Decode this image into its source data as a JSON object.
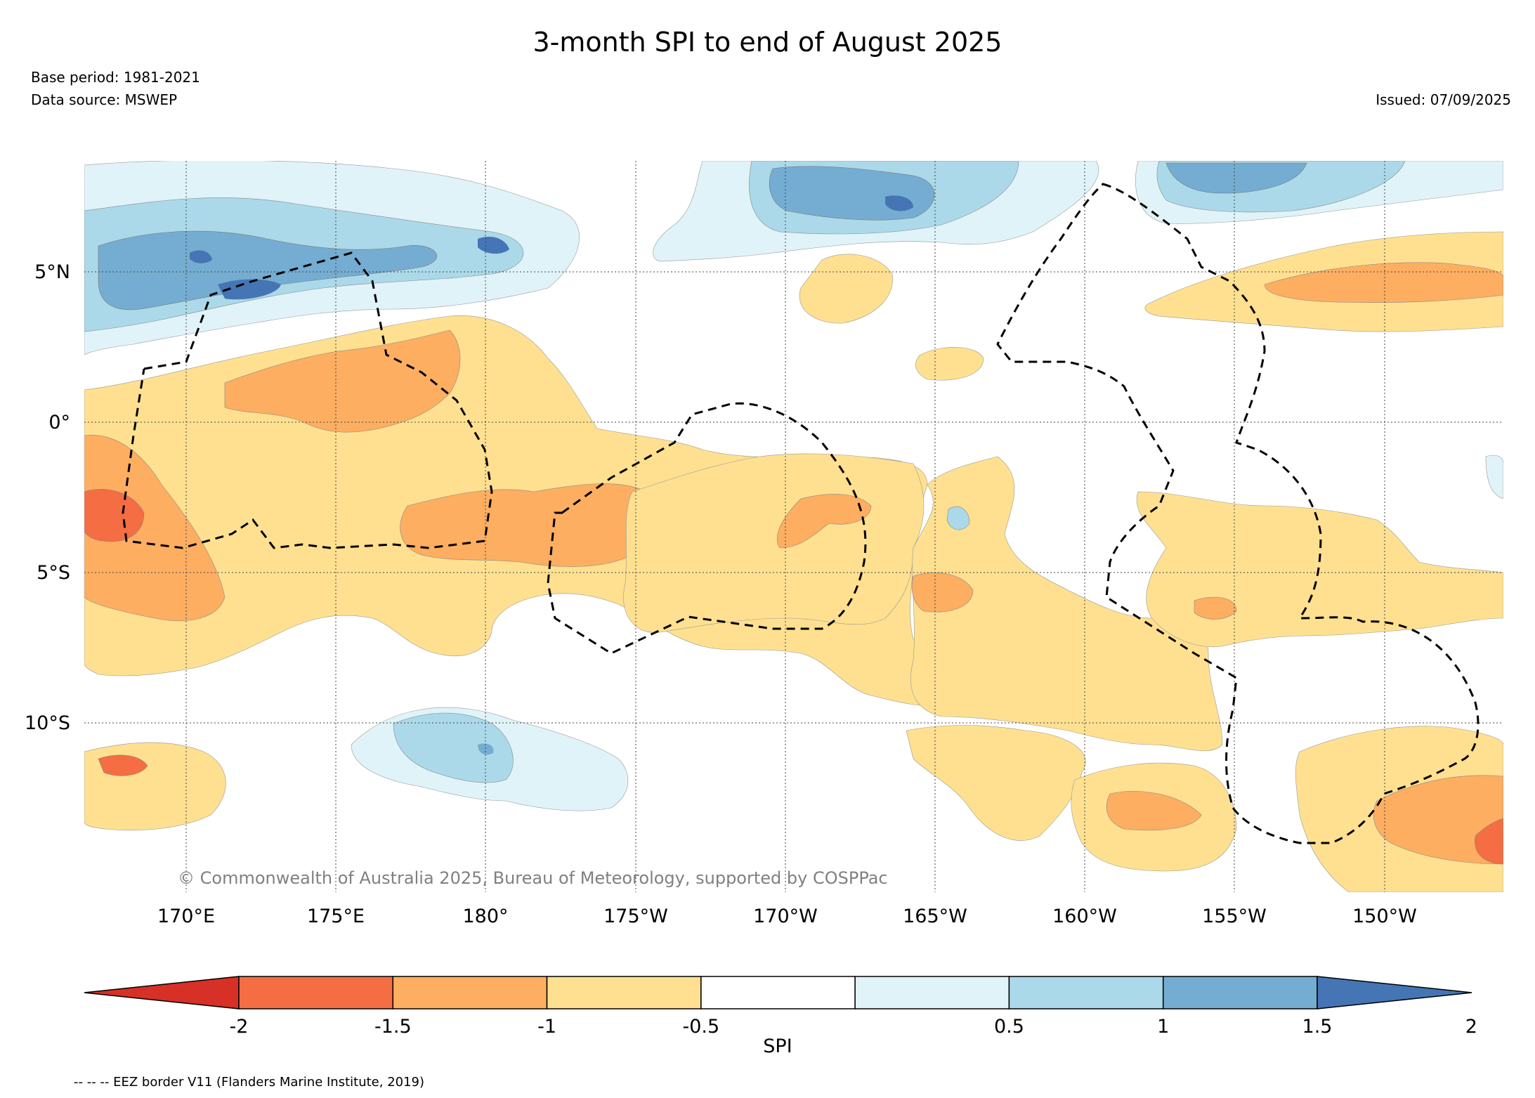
{
  "header": {
    "title": "3-month SPI to end of August 2025",
    "base_period": "Base period: 1981-2021",
    "data_source": "Data source: MSWEP",
    "issued": "Issued: 07/09/2025"
  },
  "map": {
    "lat_labels": [
      "5°N",
      "0°",
      "5°S",
      "10°S"
    ],
    "lon_labels": [
      "170°E",
      "175°E",
      "180°",
      "175°W",
      "170°W",
      "165°W",
      "160°W",
      "155°W",
      "150°W"
    ],
    "copyright": "© Commonwealth of Australia 2025, Bureau of Meteorology, supported by COSPPac",
    "colors": {
      "spi_very_wet": "#4575b4",
      "spi_wet": "#74add1",
      "spi_moist": "#abd9e9",
      "spi_slightly_moist": "#e0f3f8",
      "spi_normal": "#ffffff",
      "spi_slightly_dry": "#fee090",
      "spi_dry": "#fdae61",
      "spi_very_dry": "#f46d43",
      "spi_extremely_dry": "#d73027"
    }
  },
  "colorbar": {
    "label": "SPI",
    "ticks": [
      "-2",
      "-1.5",
      "-1",
      "-0.5",
      "0.5",
      "1",
      "1.5",
      "2"
    ],
    "colors": [
      "#d73027",
      "#f46d43",
      "#fdae61",
      "#fee090",
      "#ffffff",
      "#e0f3f8",
      "#abd9e9",
      "#74add1",
      "#4575b4"
    ]
  },
  "footnote": "-- -- -- EEZ border V11 (Flanders Marine Institute, 2019)"
}
